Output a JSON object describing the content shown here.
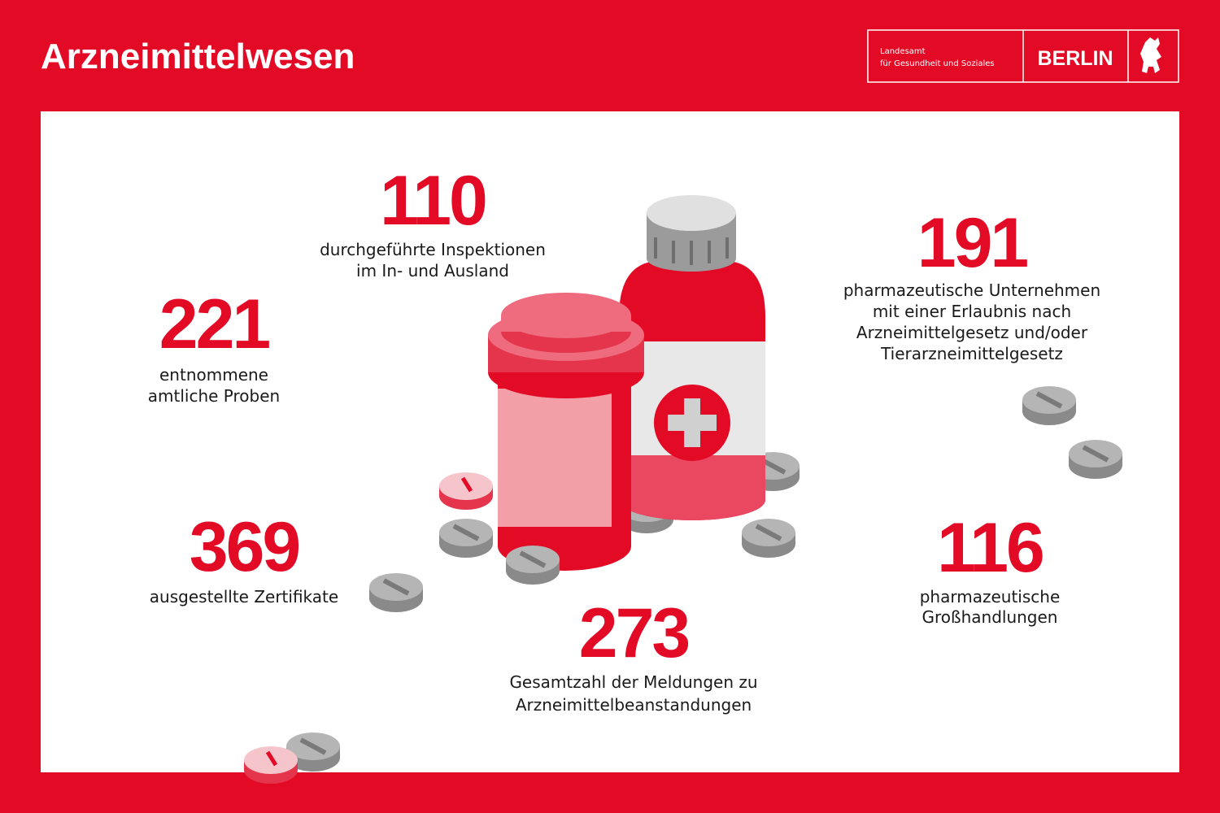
{
  "header": {
    "title": "Arzneimittelwesen",
    "logo": {
      "line1": "Landesamt",
      "line2": "für Gesundheit und Soziales",
      "city": "BERLIN"
    }
  },
  "stats": [
    {
      "value": 110,
      "label": [
        "durchgeführte Inspektionen",
        "im In- und Ausland"
      ]
    },
    {
      "value": 221,
      "label": [
        "entnommene",
        "amtliche Proben"
      ]
    },
    {
      "value": 191,
      "label": [
        "pharmazeutische Unternehmen",
        "mit einer Erlaubnis nach",
        "Arzneimittelgesetz und/oder",
        "Tierarzneimittelgesetz"
      ]
    },
    {
      "value": 369,
      "label": [
        "ausgestellte Zertifikate"
      ]
    },
    {
      "value": 116,
      "label": [
        "pharmazeutische",
        "Großhandlungen"
      ]
    },
    {
      "value": 273,
      "label": [
        "Gesamtzahl der Meldungen zu",
        "Arzneimittelbeanstandungen"
      ]
    }
  ]
}
